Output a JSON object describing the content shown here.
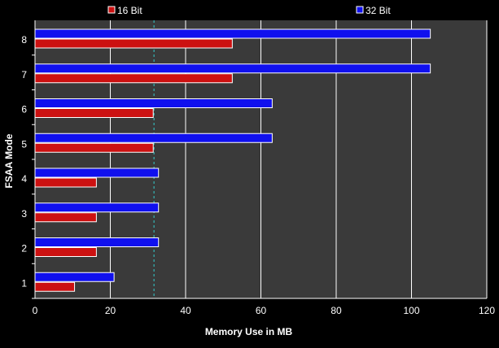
{
  "chart_data": {
    "type": "bar",
    "orientation": "horizontal",
    "title": "",
    "xlabel": "Memory Use in MB",
    "ylabel": "FSAA Mode",
    "categories": [
      "1",
      "2",
      "3",
      "4",
      "5",
      "6",
      "7",
      "8"
    ],
    "series": [
      {
        "name": "16 Bit",
        "values": [
          10.5,
          16.3,
          16.3,
          16.3,
          31.4,
          31.4,
          52.4,
          52.4
        ],
        "color": "#cc1111"
      },
      {
        "name": "32 Bit",
        "values": [
          21.0,
          32.8,
          32.8,
          32.8,
          63.0,
          63.0,
          105.0,
          105.0
        ],
        "color": "#1010ee"
      }
    ],
    "xlim": [
      0,
      120
    ],
    "xticks": [
      0,
      20,
      40,
      60,
      80,
      100,
      120
    ],
    "grid": true,
    "reference_line": {
      "x": 31.6,
      "color": "#33cccc",
      "style": "dashed"
    },
    "legend_position": "top",
    "plot_background": "#3a3a3a",
    "page_background": "#000000",
    "gridline_color": "#ffffff",
    "bar_border_color": "#ffffff"
  }
}
